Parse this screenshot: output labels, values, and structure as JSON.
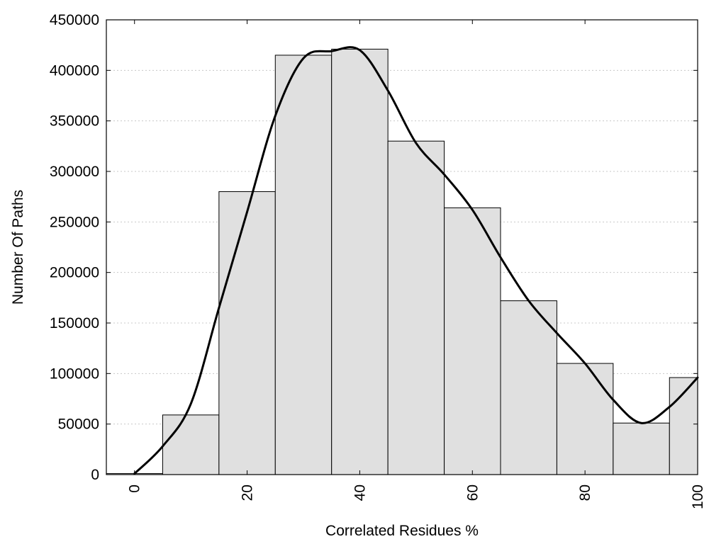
{
  "chart_data": {
    "type": "bar",
    "title": "",
    "xlabel": "Correlated Residues %",
    "ylabel": "Number Of Paths",
    "bar_width": 10,
    "xlim": [
      -5,
      100
    ],
    "ylim": [
      0,
      450000
    ],
    "x_ticks": [
      0,
      20,
      40,
      60,
      80,
      100
    ],
    "y_ticks": [
      0,
      50000,
      100000,
      150000,
      200000,
      250000,
      300000,
      350000,
      400000,
      450000
    ],
    "grid": "horizontal dotted",
    "x": [
      0,
      10,
      20,
      30,
      40,
      50,
      60,
      70,
      80,
      90,
      100
    ],
    "values": [
      1000,
      59000,
      280000,
      415000,
      421000,
      330000,
      264000,
      172000,
      110000,
      51000,
      96000
    ],
    "bar_color": "#e0e0e0",
    "curve": {
      "x": [
        0,
        5,
        10,
        15,
        20,
        25,
        30,
        35,
        40,
        45,
        50,
        55,
        60,
        65,
        70,
        75,
        80,
        85,
        90,
        95,
        100
      ],
      "y": [
        1000,
        28000,
        70000,
        165000,
        260000,
        355000,
        412000,
        419000,
        420000,
        380000,
        328000,
        297000,
        262000,
        215000,
        172000,
        140000,
        110000,
        74000,
        51000,
        67000,
        96000
      ]
    }
  }
}
